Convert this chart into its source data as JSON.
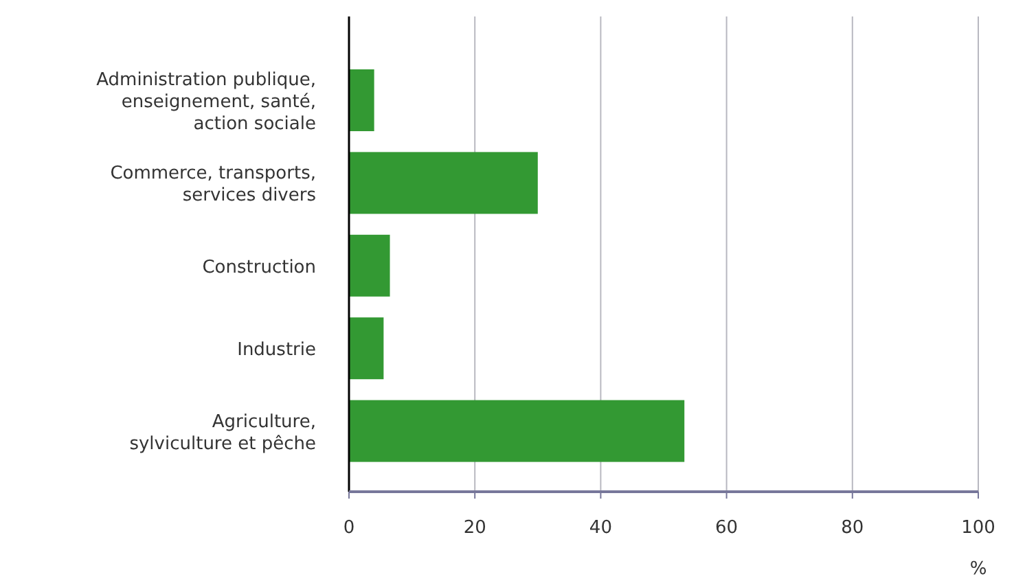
{
  "chart_data": {
    "type": "bar",
    "orientation": "horizontal",
    "categories": [
      "Administration publique,\nenseignement, santé,\naction sociale",
      "Commerce, transports,\nservices divers",
      "Construction",
      "Industrie",
      "Agriculture,\nsylviculture et pêche"
    ],
    "values": [
      4.0,
      30.0,
      6.5,
      5.5,
      53.3
    ],
    "color": "#339933",
    "xlim": [
      0,
      100
    ],
    "xticks": [
      0,
      20,
      40,
      60,
      80,
      100
    ],
    "xlabel": "%",
    "grid": "x"
  }
}
